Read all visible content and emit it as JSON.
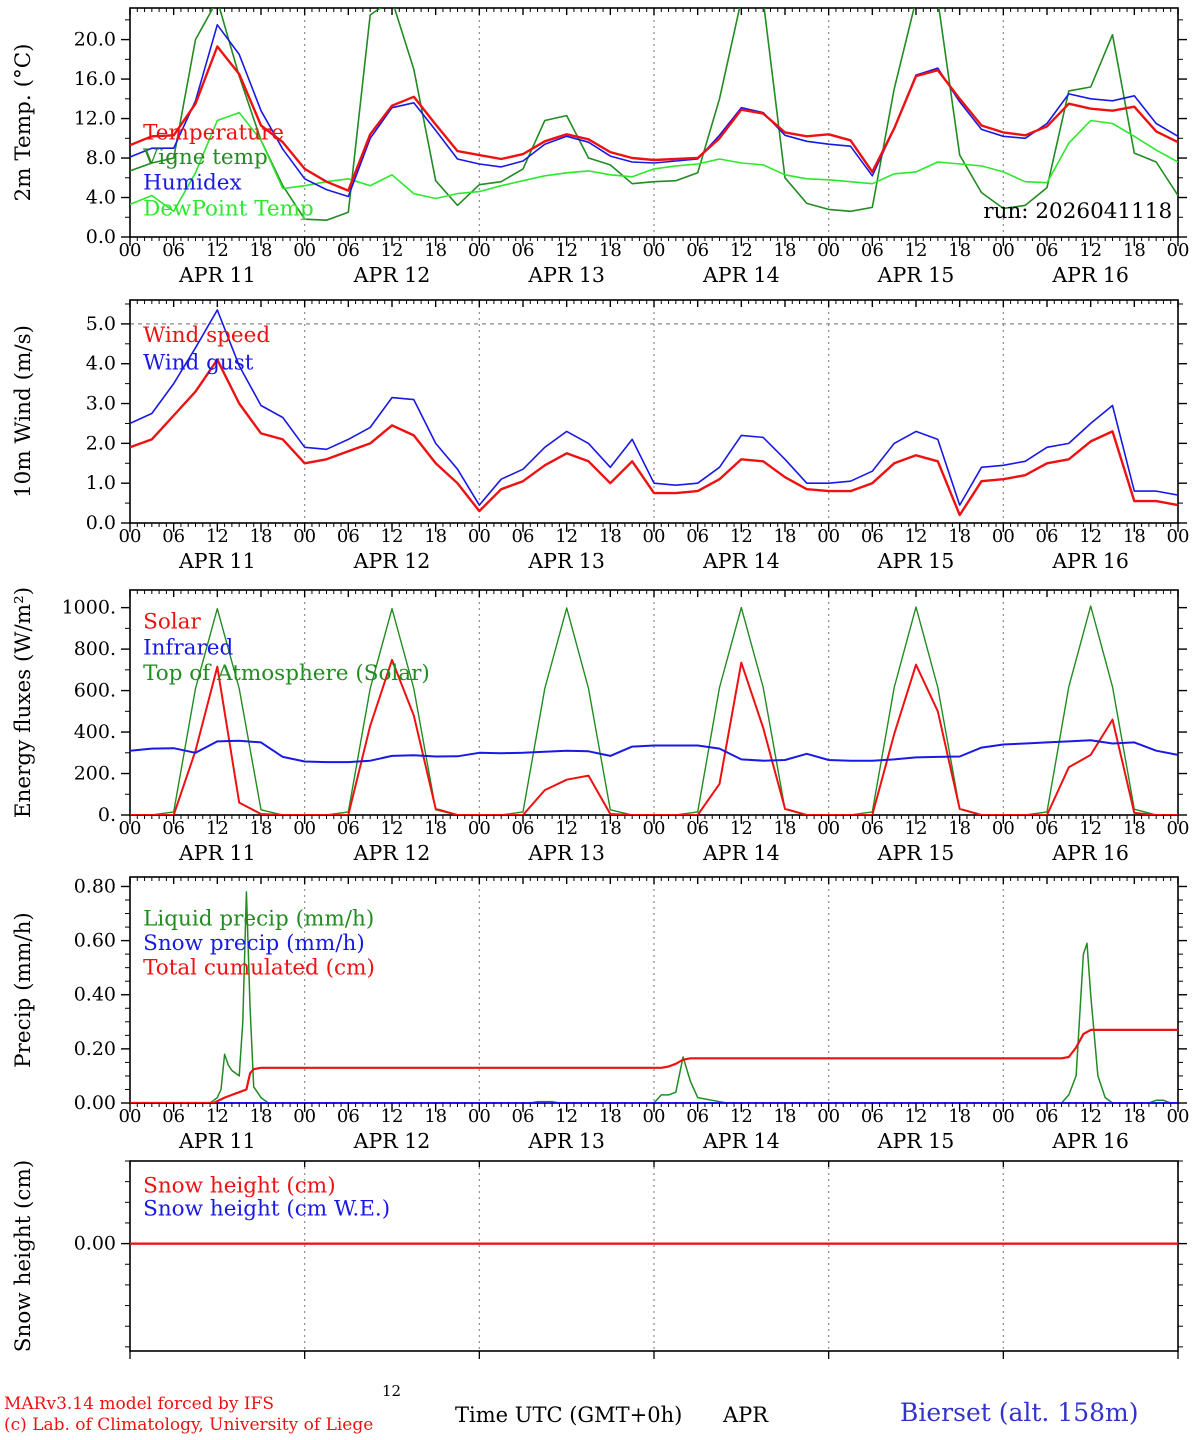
{
  "run_label": "run: 2026041118",
  "footer": {
    "model_line1": "MARv3.14 model forced by IFS",
    "model_line2": "(c) Lab. of Climatology, University of Liege",
    "xlabel": "Time UTC (GMT+0h)",
    "month_label": "APR",
    "station": "Bierset (alt. 158m)",
    "stray_tick_label": "12"
  },
  "x_axis": {
    "total_hours": 144,
    "day_labels": [
      "APR 11",
      "APR 12",
      "APR 13",
      "APR 14",
      "APR 15",
      "APR 16"
    ],
    "hour_cycle_labels": [
      "00",
      "06",
      "12",
      "18"
    ]
  },
  "colors": {
    "red": "#ee1111",
    "dark_green": "#228b22",
    "blue": "#1919e6",
    "bright_green": "#2de82d",
    "grid": "#8a8a8a",
    "axis": "#000000",
    "station_blue": "#3333cc"
  },
  "chart_data": [
    {
      "type": "line",
      "ylabel": "2m Temp. (°C)",
      "ylim": [
        0,
        23.2
      ],
      "yticks": [
        {
          "value": 0,
          "label": "0.0"
        },
        {
          "value": 4,
          "label": "4.0"
        },
        {
          "value": 8,
          "label": "8.0"
        },
        {
          "value": 12,
          "label": "12.0"
        },
        {
          "value": 16,
          "label": "16.0"
        },
        {
          "value": 20,
          "label": "20.0"
        }
      ],
      "minor_y_step": 2,
      "legend": [
        {
          "label": "Temperature",
          "color": "#ee1111",
          "y": 9.9
        },
        {
          "label": "Vigne temp",
          "color": "#228b22",
          "y": 7.4
        },
        {
          "label": "Humidex",
          "color": "#1919e6",
          "y": 4.8
        },
        {
          "label": "DewPoint Temp",
          "color": "#2de82d",
          "y": 2.2
        }
      ],
      "annotations": [
        {
          "text": "run: 2026041118",
          "h": 143.2,
          "v": 1.9,
          "anchor": "end",
          "color": "#000000"
        }
      ],
      "series": [
        {
          "name": "vigne-temp",
          "color": "#228b22",
          "width": 1.6,
          "step": 3,
          "values": [
            6.7,
            7.5,
            8.0,
            20.0,
            24.0,
            16.3,
            9.8,
            5.2,
            1.8,
            1.7,
            2.5,
            22.5,
            24.0,
            17.0,
            5.7,
            3.2,
            5.3,
            5.6,
            6.9,
            11.8,
            12.3,
            8.0,
            7.3,
            5.4,
            5.6,
            5.7,
            6.5,
            14.0,
            24.0,
            24.0,
            6.0,
            3.4,
            2.8,
            2.6,
            3.0,
            15.0,
            24.0,
            24.0,
            8.3,
            4.5,
            2.9,
            3.2,
            5.0,
            14.8,
            15.2,
            20.5,
            8.5,
            7.6,
            4.2
          ]
        },
        {
          "name": "dewpoint-temp",
          "color": "#2de82d",
          "width": 1.6,
          "step": 3,
          "values": [
            3.3,
            4.2,
            2.6,
            6.5,
            11.8,
            12.6,
            9.8,
            4.9,
            5.2,
            5.6,
            5.9,
            5.2,
            6.3,
            4.4,
            3.9,
            4.4,
            4.6,
            5.2,
            5.7,
            6.2,
            6.5,
            6.7,
            6.3,
            6.1,
            6.9,
            7.2,
            7.4,
            7.9,
            7.5,
            7.3,
            6.3,
            5.9,
            5.8,
            5.6,
            5.4,
            6.4,
            6.6,
            7.6,
            7.4,
            7.2,
            6.6,
            5.6,
            5.5,
            9.5,
            11.8,
            11.5,
            10.2,
            8.8,
            7.6
          ]
        },
        {
          "name": "humidex",
          "color": "#1919e6",
          "width": 1.6,
          "step": 3,
          "values": [
            8.1,
            9.0,
            9.0,
            13.8,
            21.5,
            18.5,
            12.8,
            8.9,
            5.9,
            4.8,
            4.1,
            10.0,
            13.1,
            13.6,
            10.8,
            7.9,
            7.4,
            7.1,
            7.7,
            9.4,
            10.2,
            9.6,
            8.2,
            7.6,
            7.5,
            7.7,
            7.9,
            10.3,
            13.1,
            12.6,
            10.3,
            9.7,
            9.4,
            9.2,
            6.2,
            11.0,
            16.4,
            17.1,
            13.7,
            10.9,
            10.2,
            10.0,
            11.5,
            14.5,
            14.0,
            13.8,
            14.3,
            11.5,
            10.2
          ]
        },
        {
          "name": "temperature",
          "color": "#ee1111",
          "width": 2.4,
          "step": 3,
          "values": [
            9.3,
            10.2,
            10.3,
            13.5,
            19.3,
            16.5,
            11.3,
            9.6,
            6.9,
            5.6,
            4.7,
            10.4,
            13.3,
            14.2,
            11.4,
            8.7,
            8.3,
            7.9,
            8.4,
            9.7,
            10.4,
            9.9,
            8.6,
            8.0,
            7.8,
            7.9,
            8.0,
            10.0,
            12.9,
            12.5,
            10.6,
            10.2,
            10.4,
            9.8,
            6.6,
            11.0,
            16.3,
            16.9,
            14.0,
            11.3,
            10.6,
            10.3,
            11.2,
            13.5,
            13.0,
            12.8,
            13.2,
            10.7,
            9.6
          ]
        }
      ]
    },
    {
      "type": "line",
      "ylabel": "10m Wind (m/s)",
      "ylim": [
        0,
        5.6
      ],
      "yticks": [
        {
          "value": 0,
          "label": "0.0"
        },
        {
          "value": 1,
          "label": "1.0"
        },
        {
          "value": 2,
          "label": "2.0"
        },
        {
          "value": 3,
          "label": "3.0"
        },
        {
          "value": 4,
          "label": "4.0"
        },
        {
          "value": 5,
          "label": "5.0"
        }
      ],
      "minor_y_step": 0.5,
      "dashed_hlines": [
        5.0
      ],
      "legend": [
        {
          "label": "Wind speed",
          "color": "#ee1111",
          "y": 4.55
        },
        {
          "label": "Wind gust",
          "color": "#1919e6",
          "y": 3.85
        }
      ],
      "annotations": [],
      "series": [
        {
          "name": "wind-gust",
          "color": "#1919e6",
          "width": 1.6,
          "step": 3,
          "values": [
            2.5,
            2.75,
            3.5,
            4.4,
            5.35,
            3.95,
            2.95,
            2.65,
            1.9,
            1.85,
            2.1,
            2.4,
            3.15,
            3.1,
            2.0,
            1.35,
            0.45,
            1.1,
            1.35,
            1.9,
            2.3,
            2.0,
            1.4,
            2.1,
            1.0,
            0.95,
            1.0,
            1.4,
            2.2,
            2.15,
            1.6,
            1.0,
            1.0,
            1.05,
            1.3,
            2.0,
            2.3,
            2.1,
            0.45,
            1.4,
            1.45,
            1.55,
            1.9,
            2.0,
            2.5,
            2.95,
            0.8,
            0.8,
            0.7
          ]
        },
        {
          "name": "wind-speed",
          "color": "#ee1111",
          "width": 2.4,
          "step": 3,
          "values": [
            1.9,
            2.1,
            2.7,
            3.3,
            4.1,
            3.0,
            2.25,
            2.1,
            1.5,
            1.6,
            1.8,
            2.0,
            2.45,
            2.2,
            1.5,
            1.0,
            0.3,
            0.85,
            1.05,
            1.45,
            1.75,
            1.55,
            1.0,
            1.55,
            0.75,
            0.75,
            0.8,
            1.1,
            1.6,
            1.55,
            1.15,
            0.85,
            0.8,
            0.8,
            1.0,
            1.5,
            1.7,
            1.55,
            0.2,
            1.05,
            1.1,
            1.2,
            1.5,
            1.6,
            2.05,
            2.3,
            0.55,
            0.55,
            0.45
          ]
        }
      ]
    },
    {
      "type": "line",
      "ylabel": "Energy fluxes (W/m²)",
      "ylim": [
        0,
        1085
      ],
      "yticks": [
        {
          "value": 0,
          "label": "0."
        },
        {
          "value": 200,
          "label": "200."
        },
        {
          "value": 400,
          "label": "400."
        },
        {
          "value": 600,
          "label": "600."
        },
        {
          "value": 800,
          "label": "800."
        },
        {
          "value": 1000,
          "label": "1000."
        }
      ],
      "minor_y_step": 100,
      "legend": [
        {
          "label": "Solar",
          "color": "#ee1111",
          "y": 900
        },
        {
          "label": "Infrared",
          "color": "#1919e6",
          "y": 775
        },
        {
          "label": "Top of Atmosphere (Solar)",
          "color": "#228b22",
          "y": 650
        }
      ],
      "annotations": [],
      "series": [
        {
          "name": "top-of-atmosphere-solar",
          "color": "#228b22",
          "width": 1.4,
          "step": 3,
          "values": [
            0,
            0,
            15,
            610,
            995,
            610,
            25,
            0,
            0,
            0,
            15,
            610,
            995,
            610,
            25,
            0,
            0,
            0,
            15,
            610,
            998,
            610,
            25,
            0,
            0,
            0,
            15,
            615,
            1000,
            615,
            28,
            0,
            0,
            0,
            15,
            615,
            1003,
            615,
            28,
            0,
            0,
            0,
            15,
            618,
            1008,
            618,
            28,
            0,
            0
          ]
        },
        {
          "name": "solar",
          "color": "#ee1111",
          "width": 2.0,
          "step": 3,
          "values": [
            0,
            0,
            0,
            310,
            715,
            60,
            5,
            0,
            0,
            0,
            0,
            430,
            748,
            480,
            30,
            0,
            0,
            0,
            0,
            120,
            170,
            190,
            5,
            0,
            0,
            0,
            0,
            150,
            735,
            420,
            30,
            0,
            0,
            0,
            0,
            390,
            725,
            500,
            30,
            0,
            0,
            0,
            0,
            230,
            290,
            460,
            10,
            0,
            0
          ]
        },
        {
          "name": "infrared",
          "color": "#1919e6",
          "width": 2.0,
          "step": 3,
          "values": [
            310,
            320,
            322,
            300,
            355,
            358,
            350,
            280,
            258,
            255,
            255,
            262,
            285,
            288,
            282,
            283,
            300,
            298,
            300,
            305,
            310,
            307,
            285,
            330,
            335,
            335,
            335,
            320,
            268,
            262,
            265,
            295,
            265,
            262,
            262,
            268,
            278,
            280,
            282,
            325,
            340,
            345,
            350,
            355,
            360,
            345,
            350,
            310,
            290
          ]
        }
      ]
    },
    {
      "type": "line",
      "ylabel": "Precip (mm/h)",
      "ylim": [
        0,
        0.835
      ],
      "yticks": [
        {
          "value": 0,
          "label": "0.00"
        },
        {
          "value": 0.2,
          "label": "0.20"
        },
        {
          "value": 0.4,
          "label": "0.40"
        },
        {
          "value": 0.6,
          "label": "0.60"
        },
        {
          "value": 0.8,
          "label": "0.80"
        }
      ],
      "minor_y_step": 0.05,
      "legend": [
        {
          "label": "Liquid precip (mm/h)",
          "color": "#228b22",
          "y": 0.655
        },
        {
          "label": "Snow precip (mm/h)",
          "color": "#1919e6",
          "y": 0.565
        },
        {
          "label": "Total cumulated (cm)",
          "color": "#ee1111",
          "y": 0.475
        }
      ],
      "annotations": [],
      "series": [
        {
          "name": "liquid-precip",
          "color": "#228b22",
          "width": 1.5,
          "points": [
            [
              0,
              0
            ],
            [
              11,
              0
            ],
            [
              11.5,
              0.01
            ],
            [
              12,
              0.02
            ],
            [
              12.5,
              0.05
            ],
            [
              13,
              0.18
            ],
            [
              13.5,
              0.14
            ],
            [
              14,
              0.12
            ],
            [
              15,
              0.1
            ],
            [
              15.5,
              0.3
            ],
            [
              16,
              0.78
            ],
            [
              16.5,
              0.35
            ],
            [
              17,
              0.06
            ],
            [
              18,
              0.02
            ],
            [
              19,
              0
            ],
            [
              55,
              0
            ],
            [
              56,
              0.005
            ],
            [
              58,
              0.005
            ],
            [
              59,
              0
            ],
            [
              72,
              0
            ],
            [
              73,
              0.03
            ],
            [
              74,
              0.03
            ],
            [
              75,
              0.04
            ],
            [
              76,
              0.17
            ],
            [
              77,
              0.08
            ],
            [
              78,
              0.02
            ],
            [
              80,
              0.01
            ],
            [
              82,
              0
            ],
            [
              128,
              0
            ],
            [
              129,
              0.03
            ],
            [
              130,
              0.1
            ],
            [
              131,
              0.55
            ],
            [
              131.5,
              0.59
            ],
            [
              132,
              0.4
            ],
            [
              133,
              0.1
            ],
            [
              134,
              0.02
            ],
            [
              135,
              0
            ],
            [
              140,
              0
            ],
            [
              141,
              0.01
            ],
            [
              142,
              0.01
            ],
            [
              143,
              0
            ],
            [
              144,
              0
            ]
          ]
        },
        {
          "name": "snow-precip",
          "color": "#1919e6",
          "width": 2.0,
          "points": [
            [
              0,
              0
            ],
            [
              144,
              0
            ]
          ]
        },
        {
          "name": "total-cumulated",
          "color": "#ee1111",
          "width": 2.2,
          "points": [
            [
              0,
              0
            ],
            [
              11.5,
              0
            ],
            [
              13,
              0.02
            ],
            [
              14,
              0.03
            ],
            [
              15,
              0.04
            ],
            [
              16,
              0.05
            ],
            [
              16.5,
              0.11
            ],
            [
              17,
              0.125
            ],
            [
              18,
              0.13
            ],
            [
              73,
              0.13
            ],
            [
              74,
              0.135
            ],
            [
              75,
              0.145
            ],
            [
              76,
              0.16
            ],
            [
              77,
              0.165
            ],
            [
              78,
              0.165
            ],
            [
              128,
              0.165
            ],
            [
              129,
              0.17
            ],
            [
              130,
              0.205
            ],
            [
              131,
              0.255
            ],
            [
              132,
              0.27
            ],
            [
              144,
              0.27
            ]
          ]
        }
      ]
    },
    {
      "type": "line",
      "ylabel": "Snow height (cm)",
      "ylim": [
        -1.3,
        1.0
      ],
      "yticks": [
        {
          "value": 0,
          "label": "0.00"
        }
      ],
      "minor_y_step": 0.25,
      "legend": [
        {
          "label": "Snow height (cm)",
          "color": "#ee1111",
          "y": 0.62
        },
        {
          "label": "Snow height (cm W.E.)",
          "color": "#1919e6",
          "y": 0.34
        }
      ],
      "annotations": [],
      "series": [
        {
          "name": "snow-height-we",
          "color": "#1919e6",
          "width": 2.0,
          "points": [
            [
              0,
              0
            ],
            [
              144,
              0
            ]
          ]
        },
        {
          "name": "snow-height",
          "color": "#ee1111",
          "width": 2.2,
          "points": [
            [
              0,
              0
            ],
            [
              144,
              0
            ]
          ]
        }
      ]
    }
  ]
}
